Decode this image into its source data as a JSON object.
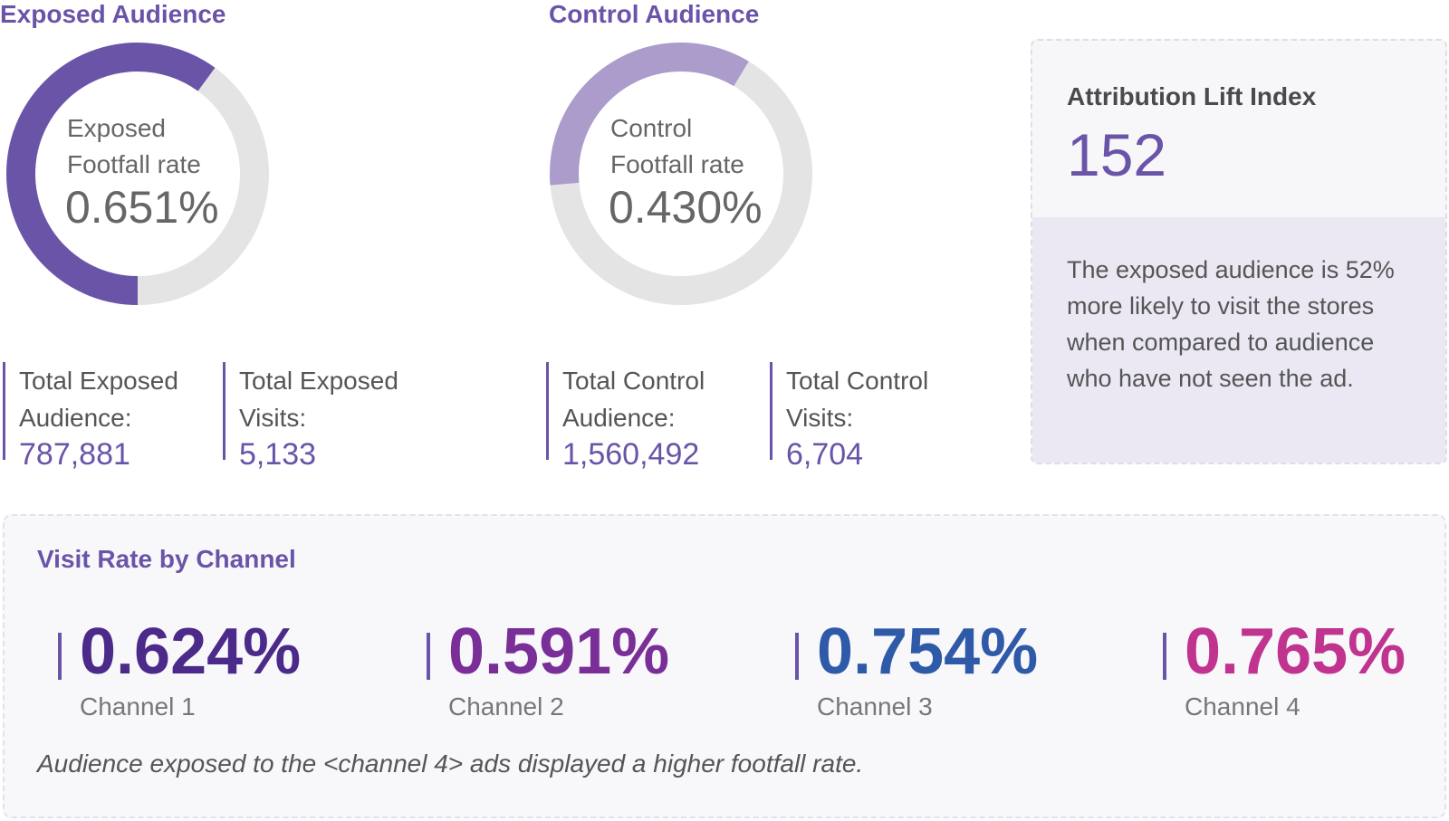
{
  "exposed": {
    "title": "Exposed Audience",
    "rate_label_line1": "Exposed",
    "rate_label_line2": "Footfall rate",
    "rate_value": "0.651%",
    "ring_fill_fraction": 0.5,
    "ring_color": "#6a54a8",
    "stats": [
      {
        "label_line1": "Total Exposed",
        "label_line2": "Audience:",
        "value": "787,881"
      },
      {
        "label_line1": "Total Exposed",
        "label_line2": "Visits:",
        "value": "5,133"
      }
    ]
  },
  "control": {
    "title": "Control Audience",
    "rate_label_line1": "Control",
    "rate_label_line2": "Footfall rate",
    "rate_value": "0.430%",
    "ring_fill_fraction": 0.35,
    "ring_color": "#ab9ccb",
    "stats": [
      {
        "label_line1": "Total Control",
        "label_line2": "Audience:",
        "value": "1,560,492"
      },
      {
        "label_line1": "Total Control",
        "label_line2": "Visits:",
        "value": "6,704"
      }
    ]
  },
  "ring_track_color": "#e4e4e4",
  "lift": {
    "title": "Attribution Lift Index",
    "value": "152",
    "description": "The exposed audience is 52% more likely to visit the stores when compared to audience who have not seen the ad."
  },
  "channels": {
    "title": "Visit Rate by Channel",
    "items": [
      {
        "value": "0.624%",
        "name": "Channel 1",
        "color": "#4b2a8a"
      },
      {
        "value": "0.591%",
        "name": "Channel 2",
        "color": "#7a2e98"
      },
      {
        "value": "0.754%",
        "name": "Channel 3",
        "color": "#2f5aa8"
      },
      {
        "value": "0.765%",
        "name": "Channel 4",
        "color": "#c0338f"
      }
    ],
    "note": "Audience exposed to the <channel 4> ads displayed a higher footfall rate."
  }
}
